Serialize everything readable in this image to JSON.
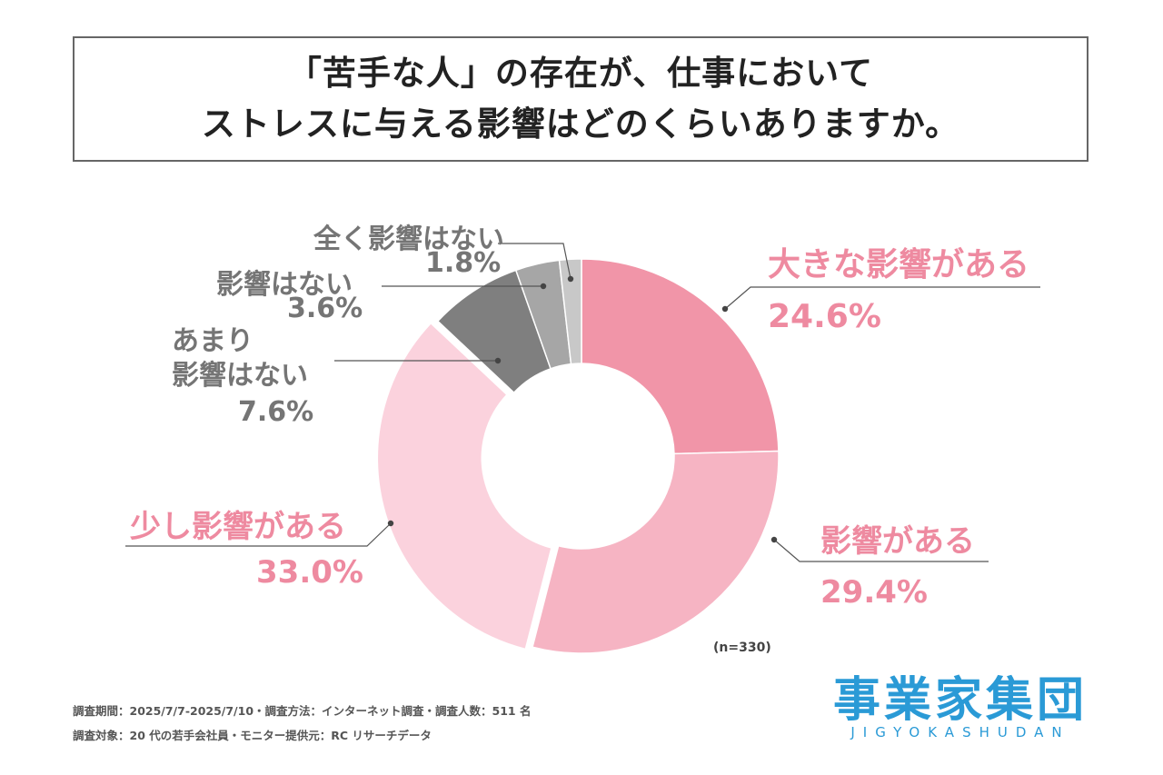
{
  "title": {
    "line1": "「苦手な人」の存在が、仕事において",
    "line2": "ストレスに与える影響はどのくらいありますか。"
  },
  "chart_data": {
    "type": "pie",
    "variant": "donut",
    "title": "「苦手な人」の存在が、仕事においてストレスに与える影響はどのくらいありますか。",
    "sample_size": "(n=330)",
    "slices": [
      {
        "label": "大きな影響がある",
        "value": 24.6,
        "value_label": "24.6%",
        "color": "#f195a8"
      },
      {
        "label": "影響がある",
        "value": 29.4,
        "value_label": "29.4%",
        "color": "#f6b4c3"
      },
      {
        "label": "少し影響がある",
        "value": 33.0,
        "value_label": "33.0%",
        "color": "#fbd2dd"
      },
      {
        "label": "あまり影響はない",
        "value": 7.6,
        "value_label": "7.6%",
        "color": "#7f7f7f"
      },
      {
        "label": "影響はない",
        "value": 3.6,
        "value_label": "3.6%",
        "color": "#a6a6a6"
      },
      {
        "label": "全く影響はない",
        "value": 1.8,
        "value_label": "1.8%",
        "color": "#c8c8c8"
      }
    ]
  },
  "labels": {
    "s0_name": "大きな影響がある",
    "s0_value": "24.6%",
    "s1_name": "影響がある",
    "s1_value": "29.4%",
    "s2_name": "少し影響がある",
    "s2_value": "33.0%",
    "s3_name_line1": "あまり",
    "s3_name_line2": "影響はない",
    "s3_value": "7.6%",
    "s4_name": "影響はない",
    "s4_value": "3.6%",
    "s5_name": "全く影響はない",
    "s5_value": "1.8%"
  },
  "footer": {
    "line1": "調査期間：2025/7/7-2025/7/10・調査方法：インターネット調査・調査人数：511 名",
    "line2": "調査対象：20 代の若手会社員・モニター提供元：RC リサーチデータ"
  },
  "logo": {
    "main": "事業家集団",
    "sub": "JIGYOKASHUDAN"
  }
}
